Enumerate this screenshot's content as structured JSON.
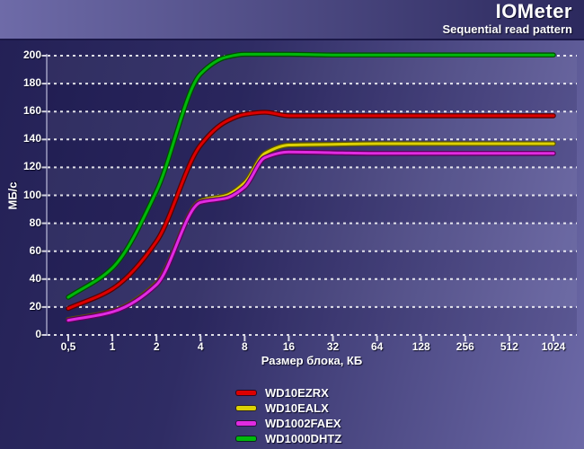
{
  "chart_data": {
    "type": "line",
    "title": "IOMeter",
    "subtitle": "Sequential read pattern",
    "xlabel": "Размер блока, КБ",
    "ylabel": "МБ/с",
    "x_scale": "log2",
    "ylim": [
      0,
      200
    ],
    "y_ticks": [
      0,
      20,
      40,
      60,
      80,
      100,
      120,
      140,
      160,
      180,
      200
    ],
    "x_tick_values": [
      0.5,
      1,
      2,
      4,
      8,
      16,
      32,
      64,
      128,
      256,
      512,
      1024
    ],
    "x_tick_labels": [
      "0,5",
      "1",
      "2",
      "4",
      "8",
      "16",
      "32",
      "64",
      "128",
      "256",
      "512",
      "1024"
    ],
    "grid": "horizontal-dotted-white",
    "legend_position": "bottom-center",
    "x": [
      0.5,
      1,
      2,
      4,
      6,
      8,
      11,
      16,
      32,
      64,
      128,
      256,
      512,
      1024
    ],
    "series": [
      {
        "name": "WD10EZRX",
        "color": "#dc0000",
        "edge": "#5a0000",
        "values": [
          19,
          33,
          67,
          136,
          153,
          158,
          159.5,
          157,
          157,
          157,
          157,
          157,
          157,
          157
        ]
      },
      {
        "name": "WD10EALX",
        "color": "#ddd104",
        "edge": "#5c5600",
        "values": [
          11,
          17,
          37,
          96,
          100,
          109,
          130,
          136,
          136.5,
          137,
          137,
          137,
          137,
          137
        ]
      },
      {
        "name": "WD1002FAEX",
        "color": "#e12be1",
        "edge": "#5e005e",
        "values": [
          10.5,
          16.5,
          36,
          95,
          98,
          106,
          127,
          131,
          130.5,
          130,
          130,
          130,
          130,
          130
        ]
      },
      {
        "name": "WD1000DHTZ",
        "color": "#00b80b",
        "edge": "#004d00",
        "values": [
          27,
          48,
          103,
          187,
          199,
          201,
          201,
          201,
          200.5,
          200.5,
          200.5,
          200.5,
          200.5,
          200.5
        ]
      }
    ],
    "band_light_color": "rgba(255,255,255,0.05)",
    "band_dark_color": "rgba(5,0,45,0.13)",
    "gridline_color": "rgba(255,255,255,0.85)",
    "axis_line_color": "rgba(220,220,245,0.5)"
  }
}
